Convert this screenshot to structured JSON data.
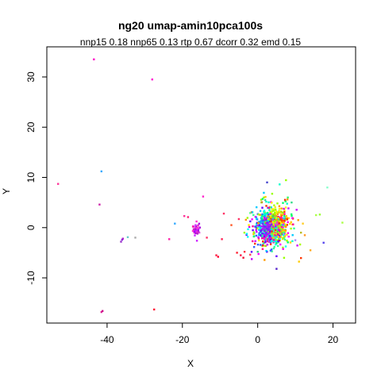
{
  "chart_data": {
    "type": "scatter",
    "title": "ng20 umap-amin10pca100s",
    "subtitle": "nnp15 0.18 nnp65 0.13 rtp 0.67 dcorr 0.32 emd 0.15",
    "xlabel": "X",
    "ylabel": "Y",
    "xlim": [
      -56,
      26
    ],
    "ylim": [
      -19,
      36
    ],
    "x_ticks": [
      -40,
      -20,
      0,
      20
    ],
    "y_ticks": [
      -10,
      0,
      10,
      20,
      30
    ],
    "x_tick_labels": [
      "-40",
      "-20",
      "0",
      "20"
    ],
    "y_tick_labels": [
      "-10",
      "0",
      "10",
      "20",
      "30"
    ],
    "grid": false,
    "legend": "none",
    "main_cluster": {
      "center": [
        4,
        0
      ],
      "spread": [
        2.5,
        2.2
      ]
    },
    "points": [
      {
        "x": -43.5,
        "y": 33.5,
        "color": "#ff00c8"
      },
      {
        "x": -28.0,
        "y": 29.5,
        "color": "#ff00d0"
      },
      {
        "x": -41.5,
        "y": 11.2,
        "color": "#33aaff"
      },
      {
        "x": -53.0,
        "y": 8.7,
        "color": "#ff3399"
      },
      {
        "x": -42.0,
        "y": 4.6,
        "color": "#cc22aa"
      },
      {
        "x": -36.0,
        "y": -2.4,
        "color": "#8822dd"
      },
      {
        "x": -36.3,
        "y": -2.8,
        "color": "#9933cc"
      },
      {
        "x": -35.8,
        "y": -2.2,
        "color": "#aa22cc"
      },
      {
        "x": -34.5,
        "y": -1.9,
        "color": "#66cccc"
      },
      {
        "x": -41.5,
        "y": -16.8,
        "color": "#dd2299"
      },
      {
        "x": -41.2,
        "y": -16.6,
        "color": "#cc1188"
      },
      {
        "x": -27.5,
        "y": -16.3,
        "color": "#ff1133"
      },
      {
        "x": -19.5,
        "y": 2.3,
        "color": "#ff3399"
      },
      {
        "x": -18.5,
        "y": 2.1,
        "color": "#ff2277"
      },
      {
        "x": -17.0,
        "y": -0.3,
        "color": "#cc22cc"
      },
      {
        "x": -16.8,
        "y": -0.8,
        "color": "#aa00ff"
      },
      {
        "x": -16.5,
        "y": 0.5,
        "color": "#cc33ff"
      },
      {
        "x": -17.2,
        "y": 0.2,
        "color": "#ff22aa"
      },
      {
        "x": -16.0,
        "y": -1.2,
        "color": "#bb22cc"
      },
      {
        "x": -15.5,
        "y": -1.0,
        "color": "#dd44dd"
      },
      {
        "x": -22.0,
        "y": 0.8,
        "color": "#33aaff"
      },
      {
        "x": -23.5,
        "y": -2.3,
        "color": "#ff22aa"
      },
      {
        "x": -14.5,
        "y": 6.2,
        "color": "#ff22cc"
      },
      {
        "x": -13.5,
        "y": -2.0,
        "color": "#ff3366"
      },
      {
        "x": -11.0,
        "y": -5.5,
        "color": "#ff2244"
      },
      {
        "x": -10.5,
        "y": -5.8,
        "color": "#ff0033"
      },
      {
        "x": -9.5,
        "y": -2.3,
        "color": "#ff2255"
      },
      {
        "x": -9.0,
        "y": 2.8,
        "color": "#ff3366"
      },
      {
        "x": -7.0,
        "y": 0.5,
        "color": "#ff5522"
      },
      {
        "x": -5.5,
        "y": -5.0,
        "color": "#ff2233"
      },
      {
        "x": -4.5,
        "y": -5.5,
        "color": "#ff1144"
      },
      {
        "x": -3.8,
        "y": -6.0,
        "color": "#ee1133"
      },
      {
        "x": -3.5,
        "y": -4.8,
        "color": "#ff3344"
      },
      {
        "x": -2.0,
        "y": -5.4,
        "color": "#ff4455"
      },
      {
        "x": -5.0,
        "y": 1.7,
        "color": "#ff3366"
      },
      {
        "x": -2.0,
        "y": 2.9,
        "color": "#66ff88"
      },
      {
        "x": 0.0,
        "y": -4.8,
        "color": "#33cc88"
      },
      {
        "x": 2.5,
        "y": 9.0,
        "color": "#4444cc"
      },
      {
        "x": 1.0,
        "y": 5.0,
        "color": "#aabb22"
      },
      {
        "x": 2.0,
        "y": 5.5,
        "color": "#44ccaa"
      },
      {
        "x": 5.0,
        "y": -8.2,
        "color": "#5522cc"
      },
      {
        "x": 8.0,
        "y": 6.0,
        "color": "#33ff66"
      },
      {
        "x": 9.0,
        "y": 5.0,
        "color": "#33dd88"
      },
      {
        "x": 10.0,
        "y": -2.5,
        "color": "#aa88ff"
      },
      {
        "x": 11.5,
        "y": -1.0,
        "color": "#bbbb22"
      },
      {
        "x": 12.0,
        "y": 0.8,
        "color": "#ffcc22"
      },
      {
        "x": 12.5,
        "y": -1.5,
        "color": "#ff9922"
      },
      {
        "x": 14.0,
        "y": -4.5,
        "color": "#ffaa22"
      },
      {
        "x": 15.5,
        "y": 2.5,
        "color": "#aaff44"
      },
      {
        "x": 16.5,
        "y": 2.6,
        "color": "#99ff33"
      },
      {
        "x": 17.5,
        "y": -3.0,
        "color": "#5544ee"
      },
      {
        "x": 18.5,
        "y": 8.0,
        "color": "#88ffcc"
      },
      {
        "x": 22.5,
        "y": 1.0,
        "color": "#aaff44"
      },
      {
        "x": -32.5,
        "y": -2.0,
        "color": "#aaaaaa"
      }
    ],
    "cluster_colors": [
      "#ff00ff",
      "#ff3300",
      "#ff9900",
      "#ffee00",
      "#99ff00",
      "#00ff66",
      "#00ffcc",
      "#00ccff",
      "#3366ff",
      "#6600ff",
      "#cc00ff",
      "#ff0099",
      "#33ff99",
      "#00ffff",
      "#aaff00",
      "#ffcc00"
    ]
  }
}
